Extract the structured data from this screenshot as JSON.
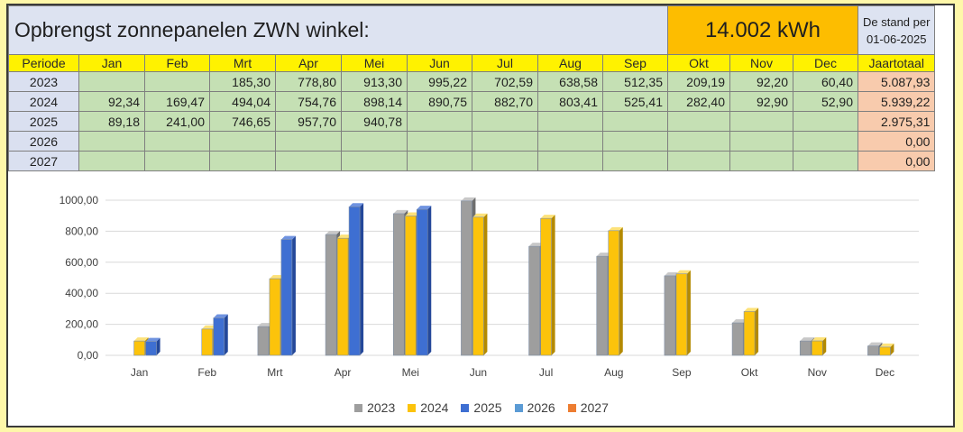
{
  "header": {
    "title": "Opbrengst zonnepanelen ZWN winkel:",
    "total": "14.002  kWh",
    "stand_line1": "De stand per",
    "stand_line2": "01-06-2025"
  },
  "table": {
    "columns": [
      "Periode",
      "Jan",
      "Feb",
      "Mrt",
      "Apr",
      "Mei",
      "Jun",
      "Jul",
      "Aug",
      "Sep",
      "Okt",
      "Nov",
      "Dec",
      "Jaartotaal"
    ],
    "rows": [
      [
        "2023",
        "",
        "",
        "185,30",
        "778,80",
        "913,30",
        "995,22",
        "702,59",
        "638,58",
        "512,35",
        "209,19",
        "92,20",
        "60,40",
        "5.087,93"
      ],
      [
        "2024",
        "92,34",
        "169,47",
        "494,04",
        "754,76",
        "898,14",
        "890,75",
        "882,70",
        "803,41",
        "525,41",
        "282,40",
        "92,90",
        "52,90",
        "5.939,22"
      ],
      [
        "2025",
        "89,18",
        "241,00",
        "746,65",
        "957,70",
        "940,78",
        "",
        "",
        "",
        "",
        "",
        "",
        "",
        "2.975,31"
      ],
      [
        "2026",
        "",
        "",
        "",
        "",
        "",
        "",
        "",
        "",
        "",
        "",
        "",
        "",
        "0,00"
      ],
      [
        "2027",
        "",
        "",
        "",
        "",
        "",
        "",
        "",
        "",
        "",
        "",
        "",
        "",
        "0,00"
      ]
    ]
  },
  "chart_data": {
    "type": "bar",
    "categories": [
      "Jan",
      "Feb",
      "Mrt",
      "Apr",
      "Mei",
      "Jun",
      "Jul",
      "Aug",
      "Sep",
      "Okt",
      "Nov",
      "Dec"
    ],
    "series": [
      {
        "name": "2023",
        "color": "#9e9e9e",
        "values": [
          null,
          null,
          185.3,
          778.8,
          913.3,
          995.22,
          702.59,
          638.58,
          512.35,
          209.19,
          92.2,
          60.4
        ]
      },
      {
        "name": "2024",
        "color": "#fcc30b",
        "values": [
          92.34,
          169.47,
          494.04,
          754.76,
          898.14,
          890.75,
          882.7,
          803.41,
          525.41,
          282.4,
          92.9,
          52.9
        ]
      },
      {
        "name": "2025",
        "color": "#3e6fd2",
        "values": [
          89.18,
          241.0,
          746.65,
          957.7,
          940.78,
          null,
          null,
          null,
          null,
          null,
          null,
          null
        ]
      },
      {
        "name": "2026",
        "color": "#5b9bd5",
        "values": [
          null,
          null,
          null,
          null,
          null,
          null,
          null,
          null,
          null,
          null,
          null,
          null
        ]
      },
      {
        "name": "2027",
        "color": "#ed7d31",
        "values": [
          null,
          null,
          null,
          null,
          null,
          null,
          null,
          null,
          null,
          null,
          null,
          null
        ]
      }
    ],
    "y_ticks": [
      "0,00",
      "200,00",
      "400,00",
      "600,00",
      "800,00",
      "1000,00"
    ],
    "ylim": [
      0,
      1000
    ],
    "grid": true,
    "legend": "bottom"
  }
}
